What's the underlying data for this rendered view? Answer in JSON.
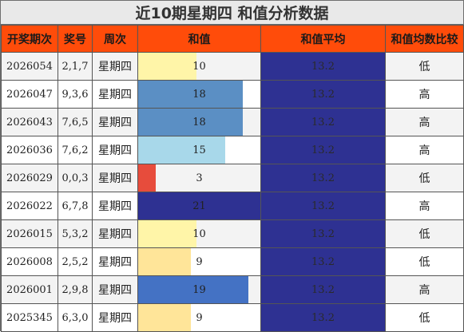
{
  "title": "近10期星期四 和值分析数据",
  "headers": {
    "issue": "开奖期次",
    "number": "奖号",
    "week": "周次",
    "sum": "和值",
    "avg": "和值平均",
    "cmp": "和值均数比较"
  },
  "colors": {
    "header_bg": "#ff4c0a",
    "avg_bg": "#2e3192",
    "bar_low": "#fff5a8",
    "bar_10": "#fff5a8",
    "bar_9": "#ffe599",
    "bar_3": "#e74c3c",
    "bar_15": "#a8d8ea",
    "bar_18": "#5b8fc4",
    "bar_19": "#4472c4",
    "bar_21": "#2e3192"
  },
  "sum_max": 21,
  "rows": [
    {
      "issue": "2026054",
      "number": "2,1,7",
      "week": "星期四",
      "sum": "10",
      "avg": "13.2",
      "cmp": "低",
      "bar_color": "#fff5a8"
    },
    {
      "issue": "2026047",
      "number": "9,3,6",
      "week": "星期四",
      "sum": "18",
      "avg": "13.2",
      "cmp": "高",
      "bar_color": "#5b8fc4"
    },
    {
      "issue": "2026043",
      "number": "7,6,5",
      "week": "星期四",
      "sum": "18",
      "avg": "13.2",
      "cmp": "高",
      "bar_color": "#5b8fc4"
    },
    {
      "issue": "2026036",
      "number": "7,6,2",
      "week": "星期四",
      "sum": "15",
      "avg": "13.2",
      "cmp": "高",
      "bar_color": "#a8d8ea"
    },
    {
      "issue": "2026029",
      "number": "0,0,3",
      "week": "星期四",
      "sum": "3",
      "avg": "13.2",
      "cmp": "低",
      "bar_color": "#e74c3c"
    },
    {
      "issue": "2026022",
      "number": "6,7,8",
      "week": "星期四",
      "sum": "21",
      "avg": "13.2",
      "cmp": "高",
      "bar_color": "#2e3192"
    },
    {
      "issue": "2026015",
      "number": "5,3,2",
      "week": "星期四",
      "sum": "10",
      "avg": "13.2",
      "cmp": "低",
      "bar_color": "#fff5a8"
    },
    {
      "issue": "2026008",
      "number": "2,5,2",
      "week": "星期四",
      "sum": "9",
      "avg": "13.2",
      "cmp": "低",
      "bar_color": "#ffe599"
    },
    {
      "issue": "2026001",
      "number": "2,9,8",
      "week": "星期四",
      "sum": "19",
      "avg": "13.2",
      "cmp": "高",
      "bar_color": "#4472c4"
    },
    {
      "issue": "2025345",
      "number": "6,3,0",
      "week": "星期四",
      "sum": "9",
      "avg": "13.2",
      "cmp": "低",
      "bar_color": "#ffe599"
    }
  ]
}
